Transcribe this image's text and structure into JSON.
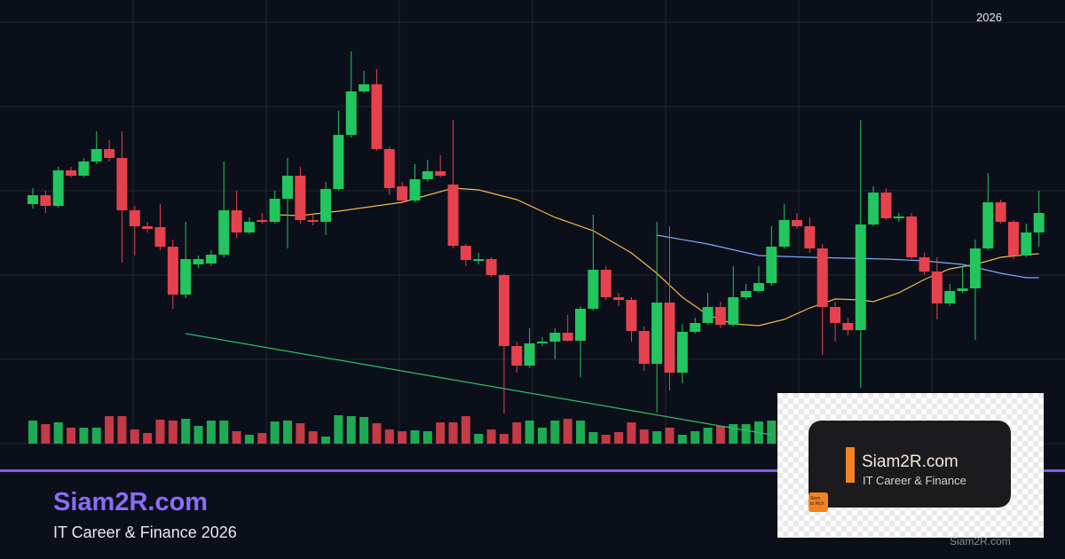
{
  "chart_data": {
    "type": "candlestick",
    "period_label": "2026",
    "up_color": "#22c55e",
    "down_color": "#e5424d",
    "ylim": [
      0,
      475
    ],
    "volume_ylim": [
      0,
      100
    ],
    "open": [
      270,
      280,
      268,
      308,
      302,
      318,
      332,
      322,
      263,
      245,
      244,
      222,
      168,
      202,
      203,
      213,
      263,
      238,
      252,
      250,
      276,
      302,
      252,
      250,
      287,
      348,
      397,
      405,
      332,
      290,
      274,
      298,
      307,
      292,
      223,
      206,
      208,
      190,
      110,
      88,
      113,
      115,
      125,
      116,
      152,
      196,
      165,
      162,
      127,
      90,
      159,
      80,
      126,
      136,
      154,
      134,
      165,
      172,
      181,
      222,
      252,
      245,
      220,
      154,
      136,
      128,
      247,
      283,
      254,
      256,
      210,
      194,
      158,
      172,
      175,
      220,
      272,
      250,
      212,
      238
    ],
    "high": [
      288,
      285,
      312,
      312,
      322,
      352,
      342,
      352,
      268,
      250,
      270,
      230,
      250,
      212,
      218,
      318,
      285,
      255,
      260,
      285,
      322,
      312,
      260,
      295,
      375,
      442,
      420,
      422,
      335,
      295,
      315,
      320,
      325,
      365,
      225,
      215,
      210,
      192,
      115,
      130,
      120,
      130,
      145,
      155,
      258,
      200,
      170,
      165,
      132,
      250,
      245,
      135,
      142,
      170,
      160,
      200,
      180,
      200,
      245,
      270,
      260,
      255,
      225,
      160,
      142,
      365,
      290,
      288,
      260,
      260,
      215,
      210,
      180,
      200,
      230,
      305,
      275,
      252,
      248,
      285
    ],
    "low": [
      265,
      260,
      266,
      300,
      300,
      315,
      318,
      204,
      212,
      238,
      218,
      152,
      164,
      198,
      200,
      210,
      232,
      236,
      248,
      248,
      220,
      248,
      246,
      235,
      285,
      345,
      395,
      330,
      280,
      272,
      272,
      295,
      300,
      220,
      200,
      202,
      188,
      34,
      80,
      85,
      110,
      95,
      115,
      75,
      150,
      162,
      155,
      115,
      82,
      35,
      60,
      68,
      124,
      134,
      130,
      132,
      162,
      170,
      178,
      220,
      242,
      215,
      100,
      115,
      122,
      63,
      245,
      252,
      250,
      208,
      190,
      140,
      155,
      170,
      117,
      218,
      248,
      208,
      210,
      222
    ],
    "close": [
      280,
      268,
      308,
      302,
      318,
      332,
      322,
      263,
      245,
      242,
      222,
      168,
      208,
      208,
      213,
      263,
      238,
      250,
      250,
      276,
      302,
      252,
      250,
      287,
      348,
      397,
      405,
      332,
      288,
      274,
      298,
      307,
      302,
      223,
      207,
      208,
      190,
      110,
      88,
      113,
      115,
      125,
      116,
      152,
      196,
      165,
      162,
      127,
      90,
      159,
      80,
      126,
      136,
      154,
      134,
      165,
      172,
      181,
      222,
      252,
      245,
      220,
      154,
      136,
      128,
      247,
      283,
      254,
      256,
      210,
      194,
      158,
      172,
      175,
      220,
      272,
      250,
      212,
      238,
      260
    ],
    "volume": [
      26,
      22,
      24,
      18,
      18,
      18,
      31,
      31,
      16,
      12,
      27,
      26,
      28,
      20,
      26,
      26,
      14,
      10,
      12,
      25,
      26,
      23,
      14,
      8,
      32,
      31,
      30,
      23,
      16,
      14,
      15,
      14,
      24,
      24,
      31,
      11,
      16,
      11,
      24,
      26,
      18,
      26,
      28,
      26,
      13,
      10,
      13,
      24,
      16,
      14,
      18,
      10,
      14,
      18,
      20,
      22,
      22,
      25,
      26,
      24,
      20,
      22,
      25,
      28,
      18,
      30,
      26,
      22,
      18,
      24,
      20,
      22,
      26,
      18,
      24,
      28,
      22,
      18,
      24,
      20
    ],
    "overlays": [
      {
        "color": "#f2b84b",
        "x": [
          19,
          21,
          24,
          27,
          29,
          31,
          33,
          35,
          38,
          41,
          44,
          47,
          49,
          51,
          53,
          55,
          57,
          59,
          61,
          63,
          65,
          66,
          68,
          70,
          72,
          74,
          76,
          78,
          79
        ],
        "values": [
          258,
          257,
          262,
          268,
          272,
          280,
          288,
          286,
          275,
          255,
          240,
          215,
          192,
          165,
          145,
          135,
          133,
          140,
          153,
          163,
          162,
          160,
          170,
          185,
          197,
          202,
          210,
          213,
          214
        ]
      },
      {
        "color": "#7aaefc",
        "x": [
          49,
          53,
          57,
          61,
          64,
          67,
          70,
          73,
          76,
          78,
          79
        ],
        "values": [
          235,
          225,
          212,
          210,
          209,
          208,
          206,
          202,
          192,
          187,
          187
        ]
      },
      {
        "color": "#2fbf6a",
        "x": [
          12,
          58
        ],
        "values": [
          124,
          10
        ]
      }
    ]
  },
  "branding": {
    "title": "Siam2R.com",
    "subtitle": "IT Career & Finance 2026"
  },
  "logo": {
    "title": "Siam2R.com",
    "subtitle": "IT Career & Finance",
    "badge": [
      "Siam",
      "to Rich"
    ]
  },
  "watermark": "Siam2R.com"
}
